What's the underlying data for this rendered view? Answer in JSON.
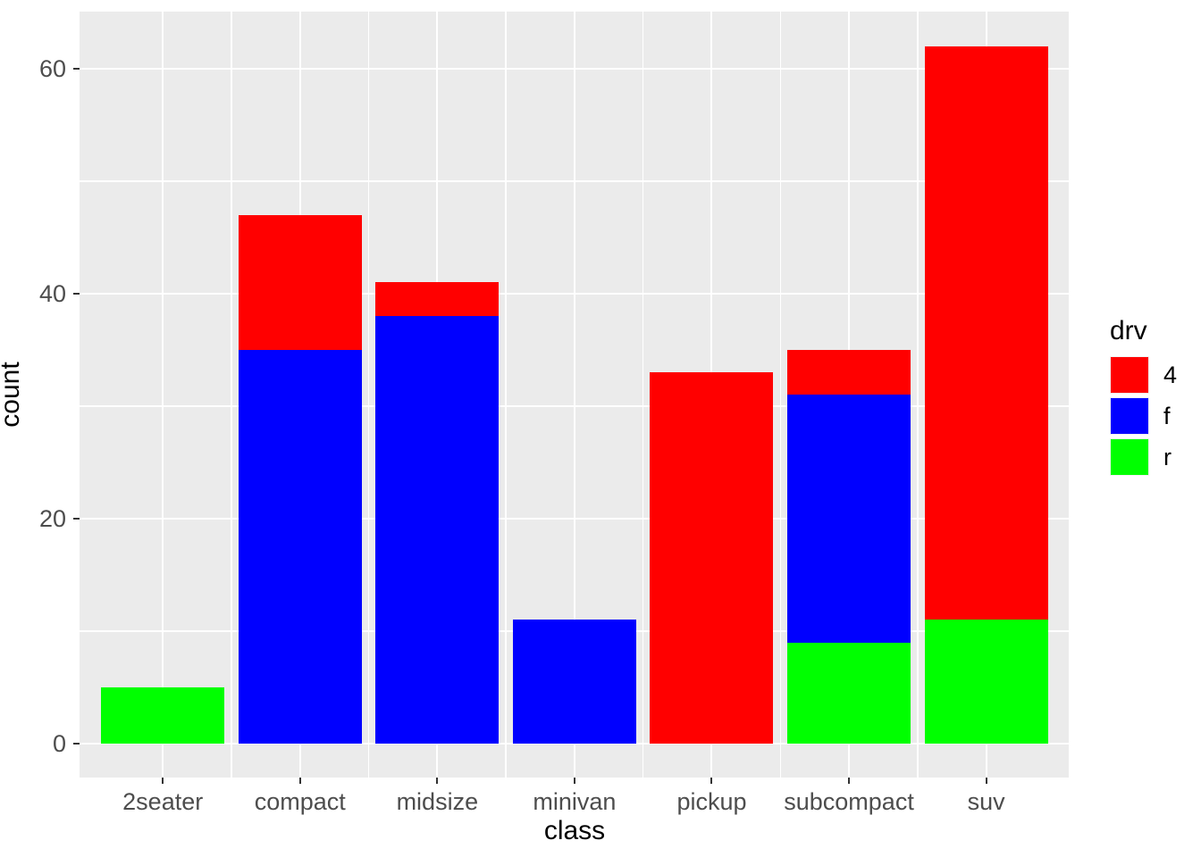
{
  "chart_data": {
    "type": "bar",
    "stacked": true,
    "title": "",
    "xlabel": "class",
    "ylabel": "count",
    "categories": [
      "2seater",
      "compact",
      "midsize",
      "minivan",
      "pickup",
      "subcompact",
      "suv"
    ],
    "series": [
      {
        "name": "4",
        "color": "#FF0000",
        "values": [
          0,
          12,
          3,
          0,
          33,
          4,
          51
        ]
      },
      {
        "name": "f",
        "color": "#0000FF",
        "values": [
          0,
          35,
          38,
          11,
          0,
          22,
          0
        ]
      },
      {
        "name": "r",
        "color": "#00FF00",
        "values": [
          5,
          0,
          0,
          0,
          0,
          9,
          11
        ]
      }
    ],
    "stack_order_bottom_to_top": [
      "r",
      "f",
      "4"
    ],
    "totals": [
      5,
      47,
      41,
      11,
      33,
      35,
      62
    ],
    "y_major_ticks": [
      0,
      20,
      40,
      60
    ],
    "y_minor_ticks": [
      10,
      30,
      50
    ],
    "ylim": [
      0,
      62
    ],
    "grid": true,
    "panel_background": "#EBEBEB",
    "gridline_color": "#FFFFFF",
    "axis_text_color": "#4D4D4D",
    "legend": {
      "title": "drv",
      "position": "right",
      "entries": [
        {
          "label": "4",
          "color": "#FF0000"
        },
        {
          "label": "f",
          "color": "#0000FF"
        },
        {
          "label": "r",
          "color": "#00FF00"
        }
      ]
    }
  }
}
